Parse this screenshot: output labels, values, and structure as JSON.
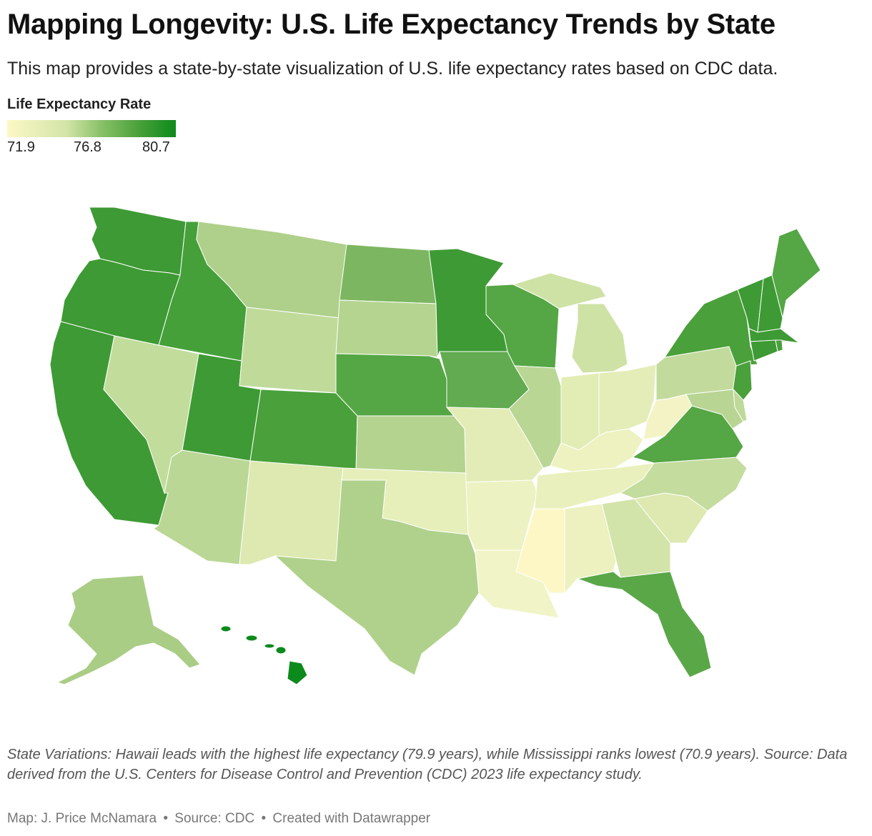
{
  "header": {
    "title": "Mapping Longevity: U.S. Life Expectancy Trends by State",
    "subtitle": "This map provides a state-by-state visualization of U.S. life expectancy rates based on CDC data."
  },
  "legend": {
    "title": "Life Expectancy Rate",
    "ticks": [
      "71.9",
      "76.8",
      "80.7"
    ],
    "colors": [
      "#fcf8c6",
      "#d3e5a8",
      "#8cc26a",
      "#4aa03a",
      "#0c8a1c"
    ]
  },
  "notes": "State Variations: Hawaii leads with the highest life expectancy (79.9 years), while Mississippi ranks lowest (70.9 years). Source: Data derived from the U.S. Centers for Disease Control and Prevention (CDC) 2023 life expectancy study.",
  "footer": {
    "author": "Map: J. Price McNamara",
    "source": "Source: CDC",
    "credit": "Created with Datawrapper",
    "separator": "•"
  },
  "states": {
    "WA": {
      "name": "Washington",
      "color": "#3e9a34"
    },
    "OR": {
      "name": "Oregon",
      "color": "#3e9a34"
    },
    "CA": {
      "name": "California",
      "color": "#3e9a34"
    },
    "ID": {
      "name": "Idaho",
      "color": "#45a03a"
    },
    "NV": {
      "name": "Nevada",
      "color": "#c2dc9c"
    },
    "UT": {
      "name": "Utah",
      "color": "#3e9a34"
    },
    "AZ": {
      "name": "Arizona",
      "color": "#bad796"
    },
    "MT": {
      "name": "Montana",
      "color": "#aed08a"
    },
    "WY": {
      "name": "Wyoming",
      "color": "#c0da9a"
    },
    "CO": {
      "name": "Colorado",
      "color": "#4aa03a"
    },
    "NM": {
      "name": "New Mexico",
      "color": "#dde9b0"
    },
    "ND": {
      "name": "North Dakota",
      "color": "#7cb660"
    },
    "SD": {
      "name": "South Dakota",
      "color": "#b5d490"
    },
    "NE": {
      "name": "Nebraska",
      "color": "#55a644"
    },
    "KS": {
      "name": "Kansas",
      "color": "#b3d38e"
    },
    "OK": {
      "name": "Oklahoma",
      "color": "#e6eeba"
    },
    "TX": {
      "name": "Texas",
      "color": "#b0d18c"
    },
    "MN": {
      "name": "Minnesota",
      "color": "#3e9a34"
    },
    "IA": {
      "name": "Iowa",
      "color": "#62ab50"
    },
    "MO": {
      "name": "Missouri",
      "color": "#e3ecb6"
    },
    "AR": {
      "name": "Arkansas",
      "color": "#edf2c2"
    },
    "LA": {
      "name": "Louisiana",
      "color": "#f1f4c6"
    },
    "WI": {
      "name": "Wisconsin",
      "color": "#55a644"
    },
    "IL": {
      "name": "Illinois",
      "color": "#b9d694"
    },
    "MI": {
      "name": "Michigan",
      "color": "#cfe2a6"
    },
    "IN": {
      "name": "Indiana",
      "color": "#e2ecb5"
    },
    "OH": {
      "name": "Ohio",
      "color": "#e4edb8"
    },
    "KY": {
      "name": "Kentucky",
      "color": "#edf2c0"
    },
    "TN": {
      "name": "Tennessee",
      "color": "#eaf0bd"
    },
    "MS": {
      "name": "Mississippi",
      "color": "#fdf7c6"
    },
    "AL": {
      "name": "Alabama",
      "color": "#ecf1bf"
    },
    "GA": {
      "name": "Georgia",
      "color": "#d3e4aa"
    },
    "FL": {
      "name": "Florida",
      "color": "#5aa748"
    },
    "SC": {
      "name": "South Carolina",
      "color": "#dde9b1"
    },
    "NC": {
      "name": "North Carolina",
      "color": "#c4dc9e"
    },
    "VA": {
      "name": "Virginia",
      "color": "#55a644"
    },
    "WV": {
      "name": "West Virginia",
      "color": "#f3f3c6"
    },
    "PA": {
      "name": "Pennsylvania",
      "color": "#c2db9c"
    },
    "NY": {
      "name": "New York",
      "color": "#4aa03a"
    },
    "NJ": {
      "name": "New Jersey",
      "color": "#4aa03a"
    },
    "MD": {
      "name": "Maryland",
      "color": "#b8d593"
    },
    "DE": {
      "name": "Delaware",
      "color": "#bfd99a"
    },
    "VT": {
      "name": "Vermont",
      "color": "#3e9a34"
    },
    "NH": {
      "name": "New Hampshire",
      "color": "#3e9a34"
    },
    "ME": {
      "name": "Maine",
      "color": "#55a644"
    },
    "MA": {
      "name": "Massachusetts",
      "color": "#3e9a34"
    },
    "CT": {
      "name": "Connecticut",
      "color": "#3e9a34"
    },
    "RI": {
      "name": "Rhode Island",
      "color": "#4aa03a"
    },
    "AK": {
      "name": "Alaska",
      "color": "#a9cd85"
    },
    "HI": {
      "name": "Hawaii",
      "color": "#0c8a1c"
    }
  }
}
